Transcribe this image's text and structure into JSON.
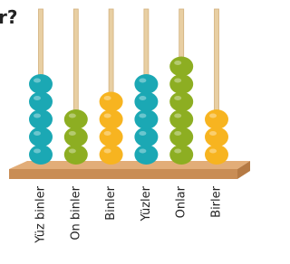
{
  "question_fragment": "r?",
  "rods": [
    {
      "label": "Yüz binler",
      "beads": 5,
      "color": "#1ba8b4"
    },
    {
      "label": "On binler",
      "beads": 3,
      "color": "#8dae22"
    },
    {
      "label": "Binler",
      "beads": 4,
      "color": "#f7b420"
    },
    {
      "label": "Yüzler",
      "beads": 5,
      "color": "#1ba8b4"
    },
    {
      "label": "Onlar",
      "beads": 6,
      "color": "#8dae22"
    },
    {
      "label": "Birler",
      "beads": 3,
      "color": "#f7b420"
    }
  ]
}
